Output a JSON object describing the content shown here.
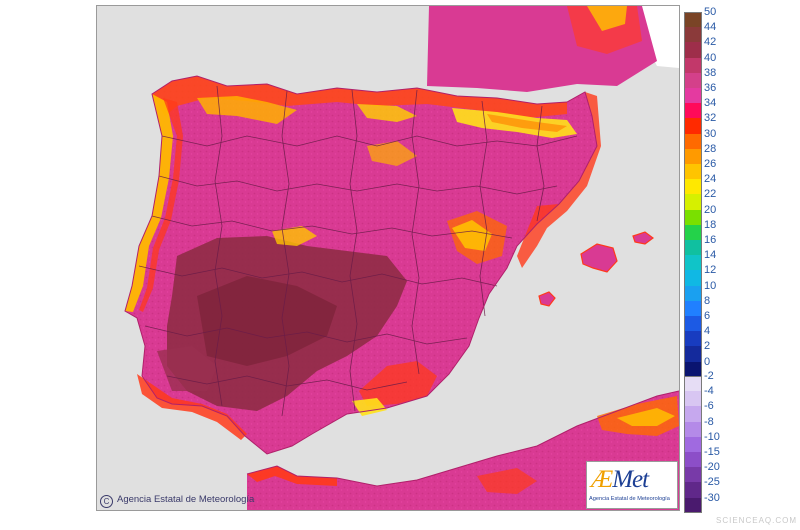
{
  "map": {
    "copyright": "Agencia Estatal de Meteorología",
    "copyright_symbol": "C",
    "colors": {
      "sea": "#e0e0e0",
      "france": "#ffffff",
      "land_base": "#d93a93",
      "interior_hot": "#8f2c46",
      "coast_heat": "#ff5a1a",
      "cool_coast": "#ffb800",
      "mountain_cool": "#ffe21a",
      "border": "#6a1c48"
    }
  },
  "logo": {
    "text_a": "Æ",
    "text_rest": "Met",
    "subtitle": "Agencia Estatal de Meteorología"
  },
  "legend": {
    "units_note": "",
    "upper": [
      {
        "label": "50",
        "color": "#7a4426"
      },
      {
        "label": "44",
        "color": "#8b3a3a"
      },
      {
        "label": "42",
        "color": "#9e2e4a"
      },
      {
        "label": "40",
        "color": "#c2386a"
      },
      {
        "label": "38",
        "color": "#d4408a"
      },
      {
        "label": "36",
        "color": "#e43aa0"
      },
      {
        "label": "34",
        "color": "#ff0a5a"
      },
      {
        "label": "32",
        "color": "#ff2a00"
      },
      {
        "label": "30",
        "color": "#ff6a00"
      },
      {
        "label": "28",
        "color": "#ff9a00"
      },
      {
        "label": "26",
        "color": "#ffc400"
      },
      {
        "label": "24",
        "color": "#ffe800"
      },
      {
        "label": "22",
        "color": "#d6f000"
      },
      {
        "label": "20",
        "color": "#7ae000"
      },
      {
        "label": "18",
        "color": "#24d24a"
      },
      {
        "label": "16",
        "color": "#10c0a0"
      },
      {
        "label": "14",
        "color": "#10c4c8"
      },
      {
        "label": "12",
        "color": "#10b8e4"
      },
      {
        "label": "10",
        "color": "#1aa0f0"
      },
      {
        "label": "8",
        "color": "#2080ff"
      },
      {
        "label": "6",
        "color": "#1c5ae4"
      },
      {
        "label": "4",
        "color": "#183cc0"
      },
      {
        "label": "2",
        "color": "#142a9c"
      },
      {
        "label": "0",
        "color": "#0a1470"
      }
    ],
    "lower": [
      {
        "label": "-2",
        "color": "#e6ddf5"
      },
      {
        "label": "-4",
        "color": "#d8c6f2"
      },
      {
        "label": "-6",
        "color": "#c6a8ee"
      },
      {
        "label": "-8",
        "color": "#b48ae8"
      },
      {
        "label": "-10",
        "color": "#a06ae0"
      },
      {
        "label": "-15",
        "color": "#8c4ec8"
      },
      {
        "label": "-20",
        "color": "#783aa8"
      },
      {
        "label": "-25",
        "color": "#60288a"
      },
      {
        "label": "-30",
        "color": "#4a1a6e"
      }
    ]
  },
  "watermark": "SCIENCEAQ.COM"
}
